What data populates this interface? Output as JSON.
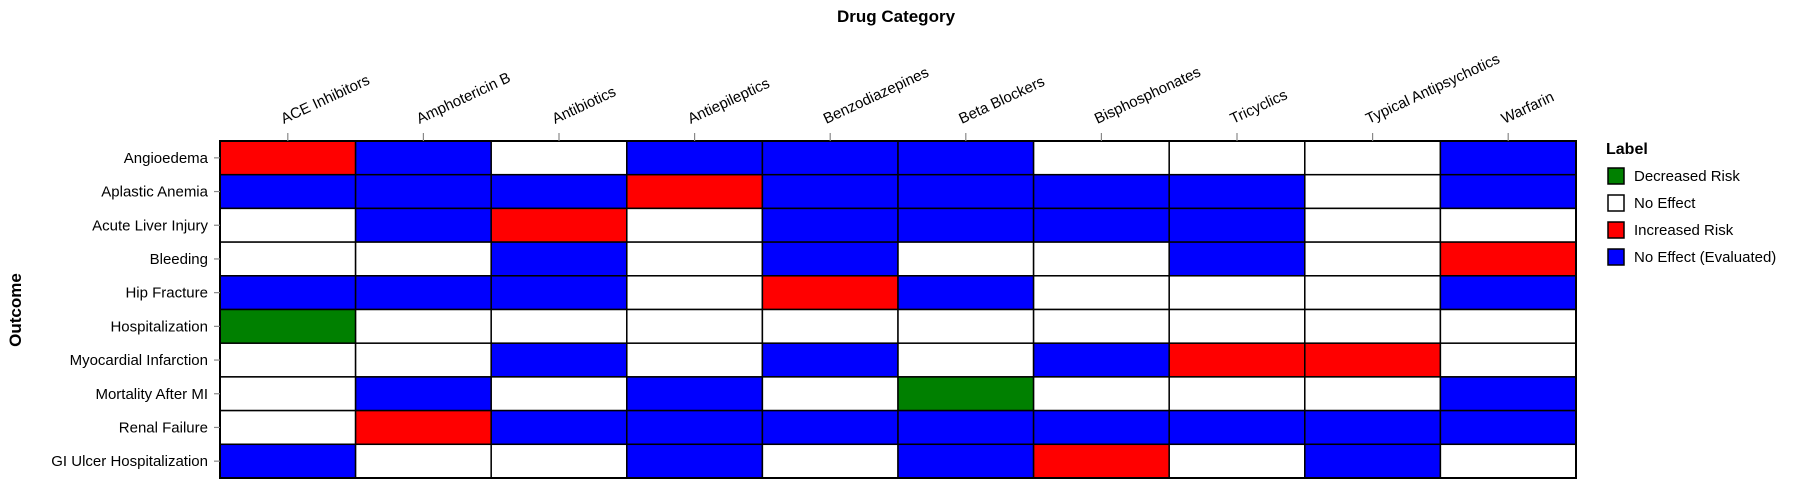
{
  "chart_data": {
    "type": "heatmap",
    "title": "Drug Category",
    "xlabel": "Drug Category",
    "ylabel": "Outcome",
    "columns": [
      "ACE Inhibitors",
      "Amphotericin B",
      "Antibiotics",
      "Antiepileptics",
      "Benzodiazepines",
      "Beta Blockers",
      "Bisphosphonates",
      "Tricyclics",
      "Typical Antipsychotics",
      "Warfarin"
    ],
    "rows": [
      "Angioedema",
      "Aplastic Anemia",
      "Acute Liver Injury",
      "Bleeding",
      "Hip Fracture",
      "Hospitalization",
      "Myocardial Infarction",
      "Mortality After MI",
      "Renal Failure",
      "GI Ulcer Hospitalization"
    ],
    "values": [
      [
        "Increased Risk",
        "No Effect (Evaluated)",
        "No Effect",
        "No Effect (Evaluated)",
        "No Effect (Evaluated)",
        "No Effect (Evaluated)",
        "No Effect",
        "No Effect",
        "No Effect",
        "No Effect (Evaluated)"
      ],
      [
        "No Effect (Evaluated)",
        "No Effect (Evaluated)",
        "No Effect (Evaluated)",
        "Increased Risk",
        "No Effect (Evaluated)",
        "No Effect (Evaluated)",
        "No Effect (Evaluated)",
        "No Effect (Evaluated)",
        "No Effect",
        "No Effect (Evaluated)"
      ],
      [
        "No Effect",
        "No Effect (Evaluated)",
        "Increased Risk",
        "No Effect",
        "No Effect (Evaluated)",
        "No Effect (Evaluated)",
        "No Effect (Evaluated)",
        "No Effect (Evaluated)",
        "No Effect",
        "No Effect"
      ],
      [
        "No Effect",
        "No Effect",
        "No Effect (Evaluated)",
        "No Effect",
        "No Effect (Evaluated)",
        "No Effect",
        "No Effect",
        "No Effect (Evaluated)",
        "No Effect",
        "Increased Risk"
      ],
      [
        "No Effect (Evaluated)",
        "No Effect (Evaluated)",
        "No Effect (Evaluated)",
        "No Effect",
        "Increased Risk",
        "No Effect (Evaluated)",
        "No Effect",
        "No Effect",
        "No Effect",
        "No Effect (Evaluated)"
      ],
      [
        "Decreased Risk",
        "No Effect",
        "No Effect",
        "No Effect",
        "No Effect",
        "No Effect",
        "No Effect",
        "No Effect",
        "No Effect",
        "No Effect"
      ],
      [
        "No Effect",
        "No Effect",
        "No Effect (Evaluated)",
        "No Effect",
        "No Effect (Evaluated)",
        "No Effect",
        "No Effect (Evaluated)",
        "Increased Risk",
        "Increased Risk",
        "No Effect"
      ],
      [
        "No Effect",
        "No Effect (Evaluated)",
        "No Effect",
        "No Effect (Evaluated)",
        "No Effect",
        "Decreased Risk",
        "No Effect",
        "No Effect",
        "No Effect",
        "No Effect (Evaluated)"
      ],
      [
        "No Effect",
        "Increased Risk",
        "No Effect (Evaluated)",
        "No Effect (Evaluated)",
        "No Effect (Evaluated)",
        "No Effect (Evaluated)",
        "No Effect (Evaluated)",
        "No Effect (Evaluated)",
        "No Effect (Evaluated)",
        "No Effect (Evaluated)"
      ],
      [
        "No Effect (Evaluated)",
        "No Effect",
        "No Effect",
        "No Effect (Evaluated)",
        "No Effect",
        "No Effect (Evaluated)",
        "Increased Risk",
        "No Effect",
        "No Effect (Evaluated)",
        "No Effect"
      ]
    ],
    "legend": {
      "title": "Label",
      "placement": "right",
      "entries": [
        {
          "label": "Decreased Risk",
          "color": "#008000"
        },
        {
          "label": "No Effect",
          "color": "#ffffff"
        },
        {
          "label": "Increased Risk",
          "color": "#ff0000"
        },
        {
          "label": "No Effect (Evaluated)",
          "color": "#0000ff"
        }
      ]
    },
    "grid": false
  }
}
